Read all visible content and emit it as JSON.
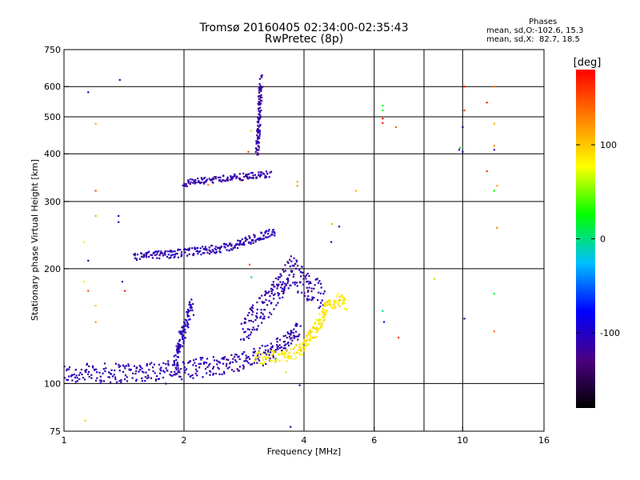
{
  "header": {
    "title_line1": "Tromsø 20160405 02:34:00-02:35:43",
    "title_line2": "RwPretec (8p)"
  },
  "phases": {
    "heading": "Phases",
    "line_o": "mean, sd,O:-102.6, 15.3",
    "line_x": "mean, sd,X:  82.7, 18.5"
  },
  "colorbar": {
    "unit_label": "[deg]",
    "ticks": [
      100,
      0,
      -100
    ],
    "range": [
      -180,
      180
    ],
    "stops": [
      "#000000",
      "#4b0082",
      "#0000ff",
      "#00bfff",
      "#00ff00",
      "#ffff00",
      "#ff8000",
      "#ff0000"
    ]
  },
  "chart_data": {
    "type": "scatter",
    "title": "Tromsø 20160405 02:34:00-02:35:43",
    "subtitle": "RwPretec (8p)",
    "xlabel": "Frequency [MHz]",
    "ylabel": "Stationary phase Virtual Height [km]",
    "xscale": "log",
    "yscale": "log",
    "xlim": [
      1,
      16
    ],
    "ylim": [
      75,
      750
    ],
    "xticks": [
      1,
      2,
      4,
      6,
      10,
      16
    ],
    "xgrid": [
      2,
      4,
      6,
      8,
      10
    ],
    "yticks": [
      75,
      100,
      200,
      300,
      400,
      500,
      600,
      750
    ],
    "ygrid": [
      100,
      200,
      300,
      400,
      500,
      600
    ],
    "grid": true,
    "color_by": "phase_deg",
    "traces": [
      {
        "name": "",
        "kind": "band",
        "phase": -110,
        "spread": 12,
        "points": [
          [
            1.0,
            106
          ],
          [
            1.4,
            107
          ],
          [
            2.0,
            109
          ],
          [
            2.6,
            113
          ],
          [
            3.2,
            119
          ],
          [
            3.6,
            128
          ],
          [
            3.9,
            138
          ]
        ]
      },
      {
        "name": "",
        "kind": "band",
        "phase": -112,
        "spread": 18,
        "points": [
          [
            2.8,
            140
          ],
          [
            3.2,
            160
          ],
          [
            3.5,
            180
          ],
          [
            3.7,
            200
          ],
          [
            3.9,
            190
          ],
          [
            4.2,
            175
          ],
          [
            4.5,
            170
          ]
        ]
      },
      {
        "name": "",
        "kind": "band",
        "phase": 85,
        "spread": 8,
        "points": [
          [
            3.0,
            117
          ],
          [
            3.5,
            118
          ],
          [
            3.9,
            122
          ],
          [
            4.3,
            140
          ],
          [
            4.6,
            160
          ],
          [
            4.9,
            166
          ],
          [
            5.1,
            160
          ]
        ]
      },
      {
        "name": "",
        "kind": "band",
        "phase": -108,
        "spread": 5,
        "points": [
          [
            1.5,
            215
          ],
          [
            2.0,
            220
          ],
          [
            2.6,
            228
          ],
          [
            3.0,
            240
          ],
          [
            3.4,
            250
          ]
        ]
      },
      {
        "name": "",
        "kind": "band",
        "phase": -115,
        "spread": 4,
        "points": [
          [
            2.0,
            335
          ],
          [
            2.5,
            345
          ],
          [
            3.0,
            350
          ],
          [
            3.3,
            355
          ]
        ]
      },
      {
        "name": "",
        "kind": "band",
        "phase": -115,
        "spread": 5,
        "points": [
          [
            3.05,
            400
          ],
          [
            3.08,
            480
          ],
          [
            3.1,
            550
          ],
          [
            3.12,
            630
          ]
        ]
      },
      {
        "name": "",
        "kind": "band",
        "phase": -105,
        "spread": 12,
        "points": [
          [
            1.9,
            110
          ],
          [
            1.95,
            130
          ],
          [
            2.05,
            150
          ],
          [
            2.1,
            160
          ]
        ]
      }
    ],
    "scattered_points": [
      [
        1.15,
        580,
        -110
      ],
      [
        1.38,
        625,
        -115
      ],
      [
        1.2,
        480,
        110
      ],
      [
        1.2,
        320,
        150
      ],
      [
        1.2,
        275,
        110
      ],
      [
        1.37,
        275,
        -110
      ],
      [
        1.37,
        265,
        -110
      ],
      [
        1.12,
        235,
        70
      ],
      [
        1.15,
        210,
        -120
      ],
      [
        1.12,
        185,
        70
      ],
      [
        1.4,
        185,
        -115
      ],
      [
        1.15,
        175,
        150
      ],
      [
        1.2,
        160,
        100
      ],
      [
        1.2,
        145,
        120
      ],
      [
        1.42,
        175,
        170
      ],
      [
        1.13,
        80,
        100
      ],
      [
        2.0,
        333,
        -110
      ],
      [
        2.3,
        332,
        130
      ],
      [
        2.9,
        405,
        150
      ],
      [
        2.95,
        460,
        60
      ],
      [
        2.95,
        190,
        0
      ],
      [
        2.92,
        205,
        150
      ],
      [
        3.85,
        338,
        110
      ],
      [
        3.85,
        330,
        120
      ],
      [
        4.7,
        262,
        110
      ],
      [
        4.68,
        235,
        -115
      ],
      [
        4.9,
        258,
        -110
      ],
      [
        5.4,
        320,
        110
      ],
      [
        6.3,
        535,
        20
      ],
      [
        6.3,
        520,
        20
      ],
      [
        6.3,
        495,
        170
      ],
      [
        6.3,
        482,
        170
      ],
      [
        6.8,
        470,
        140
      ],
      [
        6.3,
        155,
        -10
      ],
      [
        6.35,
        145,
        -70
      ],
      [
        6.9,
        132,
        160
      ],
      [
        8.5,
        188,
        60
      ],
      [
        9.8,
        410,
        -120
      ],
      [
        9.85,
        415,
        0
      ],
      [
        10.0,
        405,
        -110
      ],
      [
        10.0,
        470,
        -120
      ],
      [
        10.1,
        600,
        170
      ],
      [
        10.1,
        520,
        160
      ],
      [
        11.5,
        545,
        170
      ],
      [
        11.5,
        360,
        160
      ],
      [
        12.0,
        600,
        130
      ],
      [
        12.0,
        480,
        110
      ],
      [
        12.0,
        420,
        120
      ],
      [
        12.0,
        410,
        -120
      ],
      [
        12.2,
        330,
        110
      ],
      [
        12.0,
        320,
        30
      ],
      [
        12.2,
        256,
        130
      ],
      [
        12.0,
        172,
        20
      ],
      [
        12.0,
        137,
        140
      ],
      [
        10.1,
        148,
        -140
      ],
      [
        3.9,
        99,
        -110
      ],
      [
        3.7,
        77,
        -120
      ],
      [
        1.8,
        100,
        -110
      ],
      [
        3.6,
        107,
        60
      ]
    ]
  }
}
